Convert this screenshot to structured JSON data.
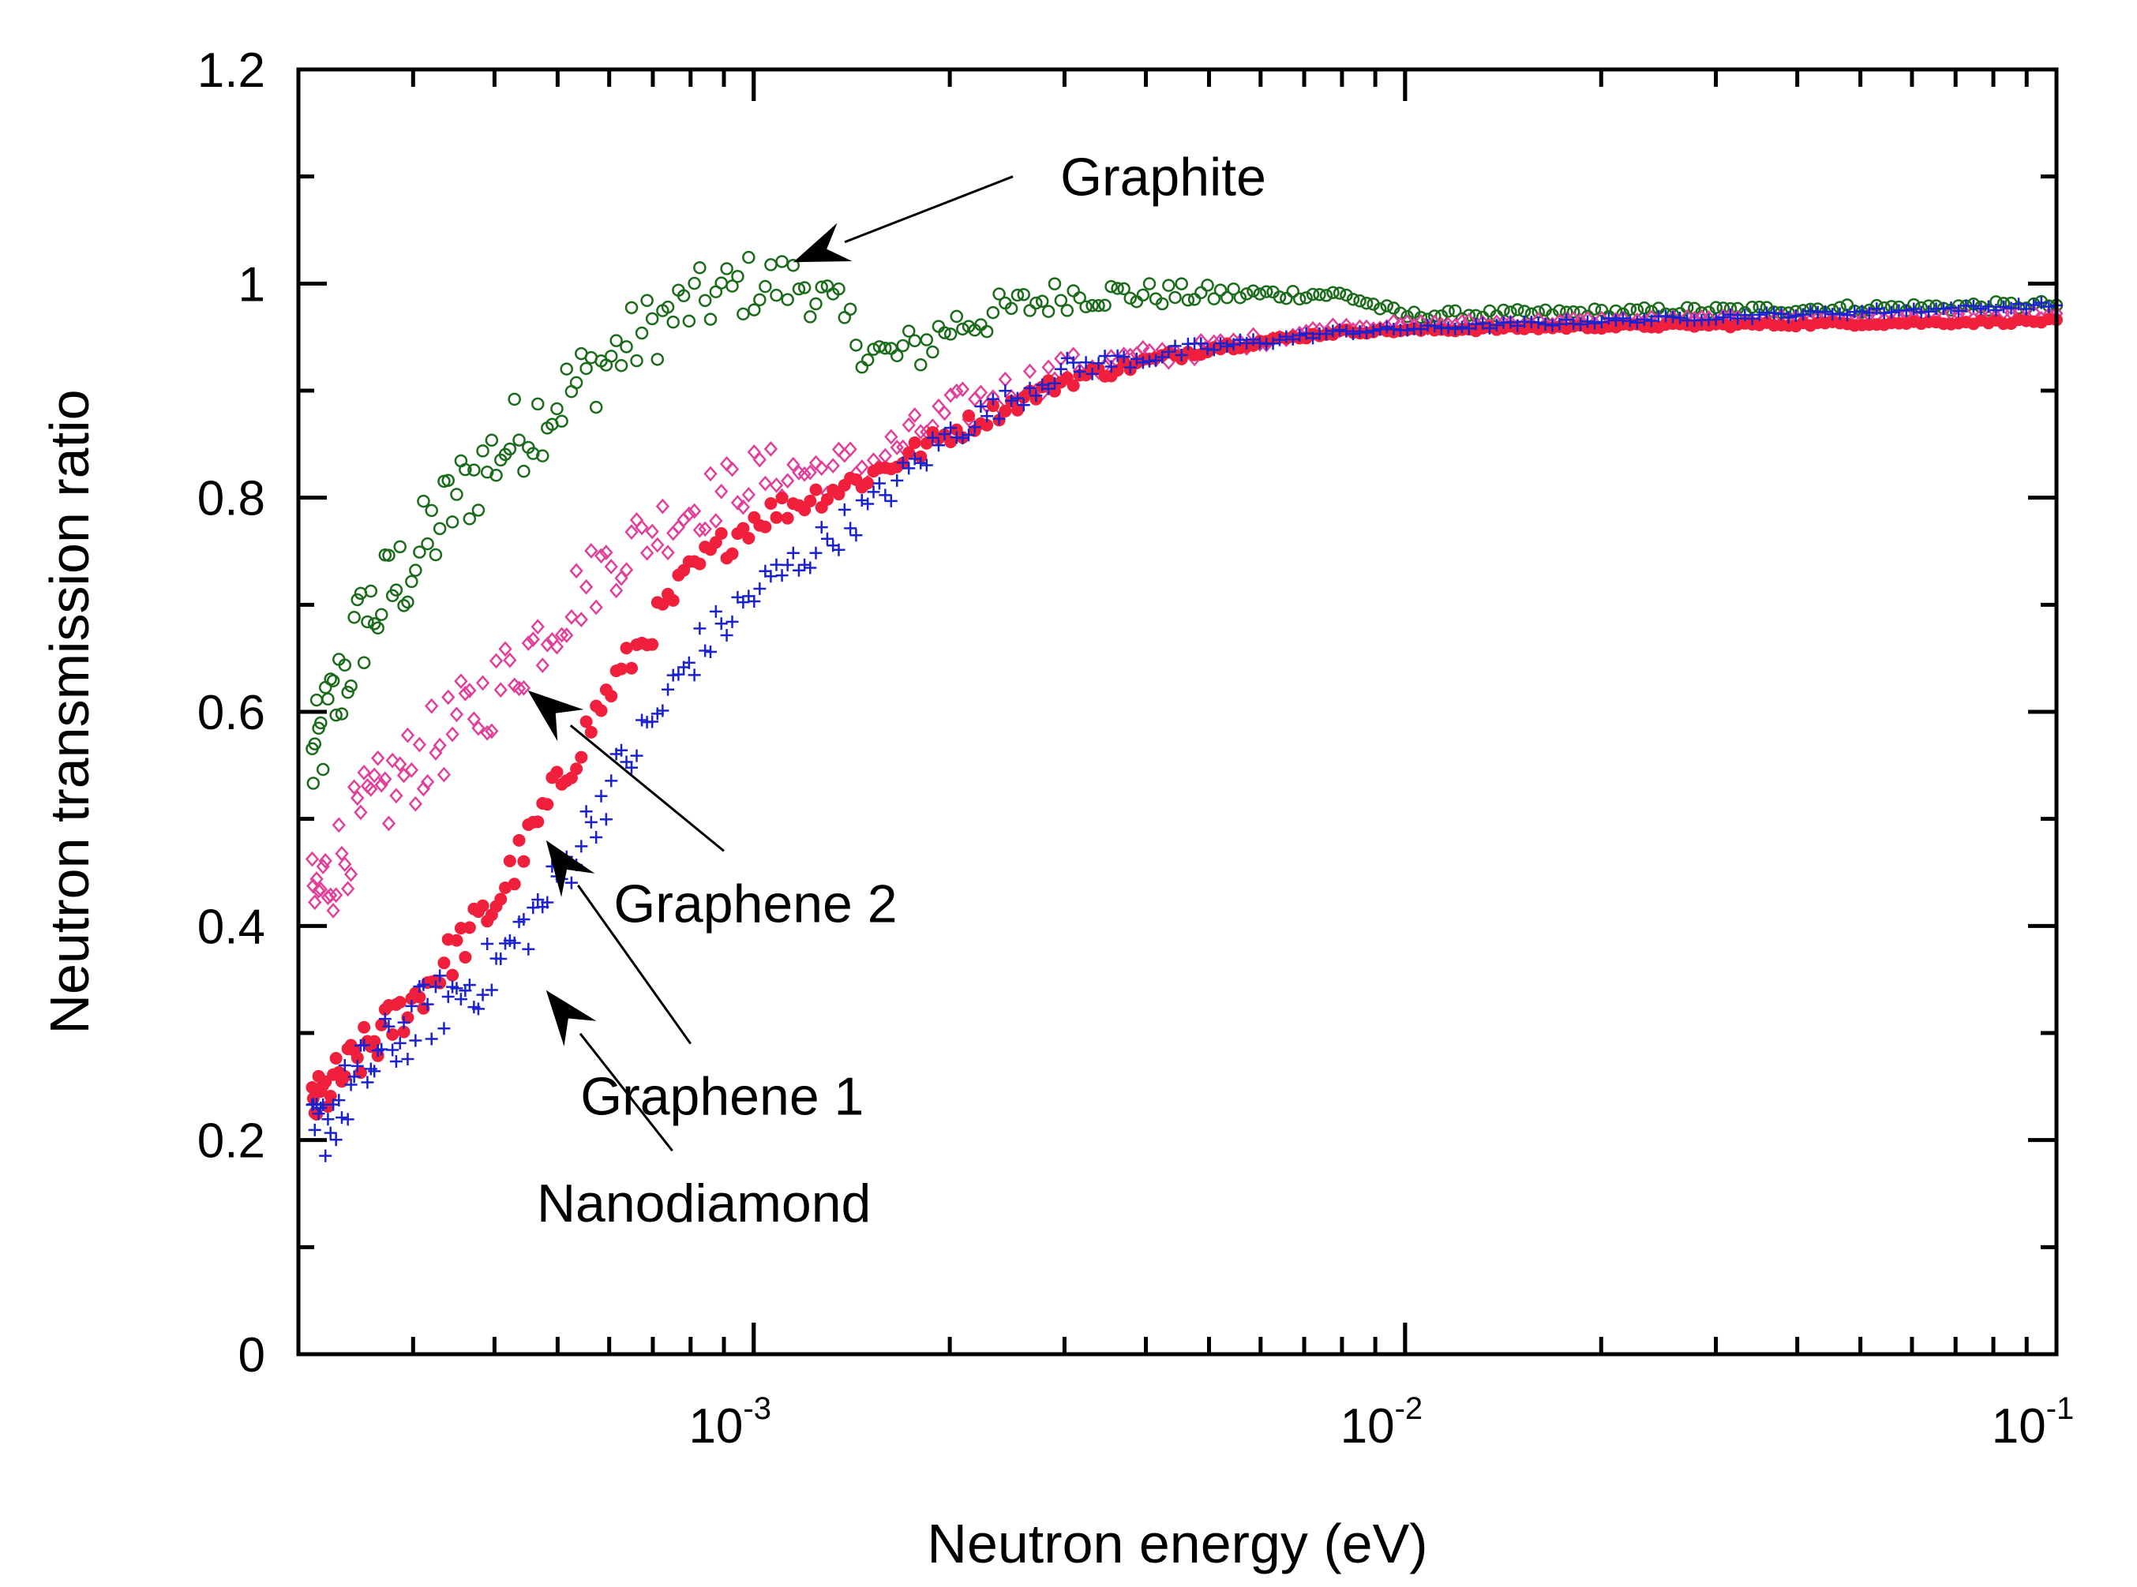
{
  "chart_data": {
    "type": "scatter",
    "title": "",
    "xlabel": "Neutron energy (eV)",
    "ylabel": "Neutron transmission ratio",
    "xscale": "log",
    "xlim": [
      0.0002,
      0.1
    ],
    "ylim": [
      0,
      1.2
    ],
    "grid": false,
    "yticks": [
      "0",
      "0.2",
      "0.4",
      "0.6",
      "0.8",
      "1",
      "1.2"
    ],
    "xticks": [
      {
        "base": "10",
        "exp": "-3"
      },
      {
        "base": "10",
        "exp": "-2"
      },
      {
        "base": "10",
        "exp": "-1"
      }
    ],
    "colors": {
      "Graphite": "#1a6b1a",
      "Graphene 2": "#e0409a",
      "Graphene 1": "#f0203c",
      "Nanodiamond": "#1a22d0"
    },
    "series": [
      {
        "name": "Graphite",
        "marker": "open-circle",
        "curve": [
          [
            0.00021,
            0.55
          ],
          [
            0.00025,
            0.68
          ],
          [
            0.0003,
            0.74
          ],
          [
            0.00035,
            0.8
          ],
          [
            0.0004,
            0.84
          ],
          [
            0.0005,
            0.89
          ],
          [
            0.0006,
            0.93
          ],
          [
            0.0007,
            0.96
          ],
          [
            0.0008,
            0.98
          ],
          [
            0.001,
            1.0
          ],
          [
            0.0012,
            1.0
          ],
          [
            0.0013,
            0.98
          ],
          [
            0.0015,
            0.94
          ],
          [
            0.0016,
            0.93
          ],
          [
            0.0018,
            0.94
          ],
          [
            0.002,
            0.96
          ],
          [
            0.003,
            0.99
          ],
          [
            0.005,
            0.99
          ],
          [
            0.008,
            0.99
          ],
          [
            0.01,
            0.97
          ],
          [
            0.1,
            0.98
          ]
        ],
        "spread": 0.05
      },
      {
        "name": "Graphene 2",
        "marker": "open-diamond",
        "curve": [
          [
            0.00021,
            0.42
          ],
          [
            0.00025,
            0.5
          ],
          [
            0.0003,
            0.55
          ],
          [
            0.0004,
            0.62
          ],
          [
            0.0005,
            0.69
          ],
          [
            0.0006,
            0.74
          ],
          [
            0.0007,
            0.77
          ],
          [
            0.0008,
            0.79
          ],
          [
            0.001,
            0.82
          ],
          [
            0.0015,
            0.83
          ],
          [
            0.002,
            0.88
          ],
          [
            0.003,
            0.92
          ],
          [
            0.005,
            0.94
          ],
          [
            0.008,
            0.96
          ],
          [
            0.02,
            0.965
          ],
          [
            0.1,
            0.97
          ]
        ],
        "spread": 0.045
      },
      {
        "name": "Graphene 1",
        "marker": "filled-circle",
        "curve": [
          [
            0.00021,
            0.23
          ],
          [
            0.00025,
            0.28
          ],
          [
            0.0003,
            0.33
          ],
          [
            0.0004,
            0.42
          ],
          [
            0.0005,
            0.53
          ],
          [
            0.0006,
            0.62
          ],
          [
            0.0007,
            0.68
          ],
          [
            0.0008,
            0.73
          ],
          [
            0.001,
            0.78
          ],
          [
            0.0015,
            0.82
          ],
          [
            0.002,
            0.86
          ],
          [
            0.003,
            0.91
          ],
          [
            0.005,
            0.94
          ],
          [
            0.008,
            0.955
          ],
          [
            0.02,
            0.96
          ],
          [
            0.1,
            0.965
          ]
        ],
        "spread": 0.025
      },
      {
        "name": "Nanodiamond",
        "marker": "plus",
        "curve": [
          [
            0.00021,
            0.2
          ],
          [
            0.00025,
            0.26
          ],
          [
            0.0003,
            0.31
          ],
          [
            0.0004,
            0.36
          ],
          [
            0.0005,
            0.44
          ],
          [
            0.0006,
            0.53
          ],
          [
            0.0007,
            0.59
          ],
          [
            0.0008,
            0.65
          ],
          [
            0.001,
            0.71
          ],
          [
            0.0015,
            0.79
          ],
          [
            0.002,
            0.86
          ],
          [
            0.003,
            0.92
          ],
          [
            0.005,
            0.94
          ],
          [
            0.008,
            0.955
          ],
          [
            0.02,
            0.965
          ],
          [
            0.1,
            0.98
          ]
        ],
        "spread": 0.035
      }
    ],
    "annotations": [
      {
        "text": "Graphite",
        "target": [
          0.00115,
          1.02
        ],
        "label_at": [
          0.0025,
          1.1
        ]
      },
      {
        "text": "Graphene 2",
        "target": [
          0.00045,
          0.62
        ],
        "label_at": [
          0.0009,
          0.47
        ]
      },
      {
        "text": "Graphene 1",
        "target": [
          0.00048,
          0.48
        ],
        "label_at": [
          0.0008,
          0.29
        ]
      },
      {
        "text": "Nanodiamond",
        "target": [
          0.00048,
          0.34
        ],
        "label_at": [
          0.00075,
          0.19
        ]
      }
    ]
  }
}
